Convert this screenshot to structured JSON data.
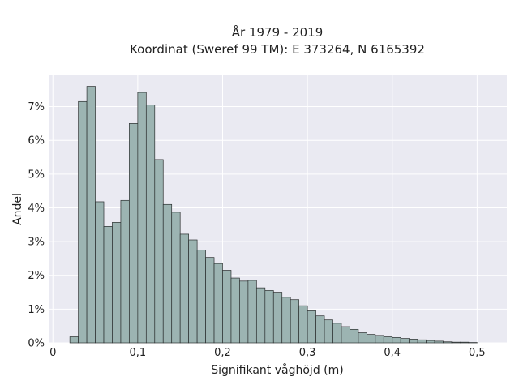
{
  "chart_data": {
    "type": "bar",
    "title": "År 1979 - 2019",
    "subtitle": "Koordinat (Sweref 99 TM): E 373264, N 6165392",
    "xlabel": "Signifikant våghöjd (m)",
    "ylabel": "Andel",
    "xlim": [
      -0.005,
      0.535
    ],
    "ylim": [
      0,
      0.0795
    ],
    "x_ticks": [
      0,
      0.1,
      0.2,
      0.3,
      0.4,
      0.5
    ],
    "x_tick_labels": [
      "0",
      "0,1",
      "0,2",
      "0,3",
      "0,4",
      "0,5"
    ],
    "y_ticks": [
      0,
      0.01,
      0.02,
      0.03,
      0.04,
      0.05,
      0.06,
      0.07
    ],
    "y_tick_labels": [
      "0%",
      "1%",
      "2%",
      "3%",
      "4%",
      "5%",
      "6%",
      "7%"
    ],
    "grid": true,
    "bin_width": 0.01,
    "bin_starts": [
      0.02,
      0.03,
      0.04,
      0.05,
      0.06,
      0.07,
      0.08,
      0.09,
      0.1,
      0.11,
      0.12,
      0.13,
      0.14,
      0.15,
      0.16,
      0.17,
      0.18,
      0.19,
      0.2,
      0.21,
      0.22,
      0.23,
      0.24,
      0.25,
      0.26,
      0.27,
      0.28,
      0.29,
      0.3,
      0.31,
      0.32,
      0.33,
      0.34,
      0.35,
      0.36,
      0.37,
      0.38,
      0.39,
      0.4,
      0.41,
      0.42,
      0.43,
      0.44,
      0.45,
      0.46,
      0.47,
      0.48,
      0.49
    ],
    "values": [
      0.0018,
      0.0715,
      0.076,
      0.0418,
      0.0345,
      0.0357,
      0.0422,
      0.065,
      0.0742,
      0.0705,
      0.0543,
      0.041,
      0.0387,
      0.0322,
      0.0305,
      0.0275,
      0.0253,
      0.0235,
      0.0215,
      0.0192,
      0.0183,
      0.0185,
      0.0163,
      0.0155,
      0.015,
      0.0135,
      0.0128,
      0.011,
      0.0095,
      0.008,
      0.0068,
      0.0058,
      0.0048,
      0.004,
      0.003,
      0.0025,
      0.0022,
      0.0018,
      0.0016,
      0.0013,
      0.0011,
      0.0009,
      0.0007,
      0.0005,
      0.0003,
      0.0002,
      0.0002,
      0.0001
    ],
    "colors": {
      "bar_fill": "#9cb4b2",
      "bar_stroke": "#2b2f2f",
      "plot_bg": "#eaeaf2",
      "grid": "#ffffff",
      "text": "#222222"
    }
  }
}
